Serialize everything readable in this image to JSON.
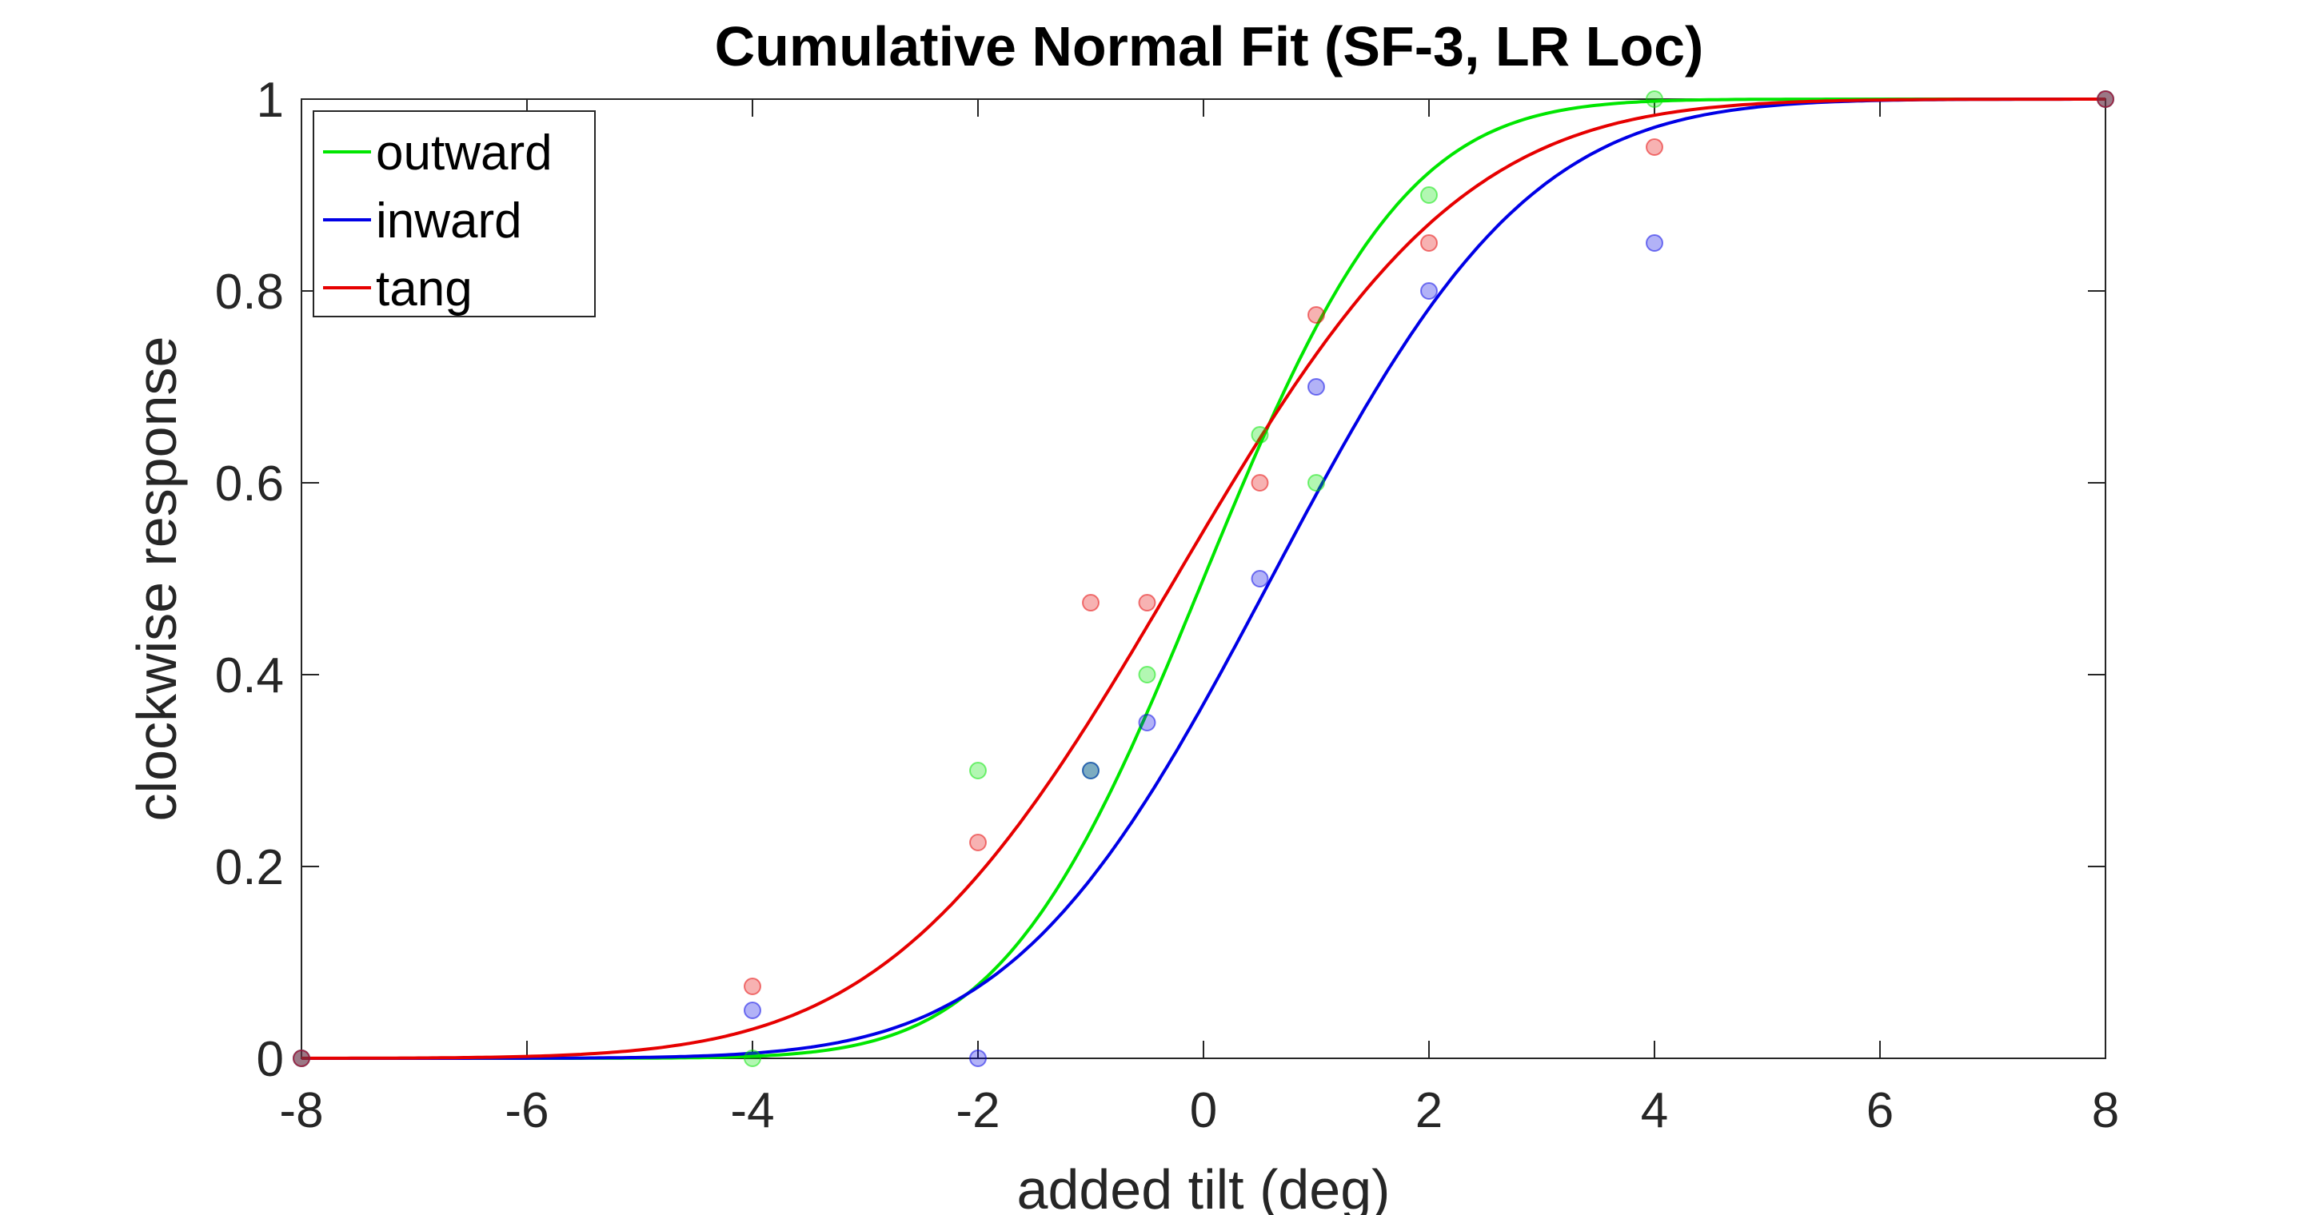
{
  "chart_data": {
    "type": "scatter",
    "title": "Cumulative Normal Fit (SF-3, LR Loc)",
    "xlabel": "added tilt (deg)",
    "ylabel": "clockwise response",
    "xlim": [
      -8,
      8
    ],
    "ylim": [
      0,
      1
    ],
    "xticks": [
      -8,
      -6,
      -4,
      -2,
      0,
      2,
      4,
      6,
      8
    ],
    "xtick_labels": [
      "-8",
      "-6",
      "-4",
      "-2",
      "0",
      "2",
      "4",
      "6",
      "8"
    ],
    "yticks": [
      0,
      0.2,
      0.4,
      0.6,
      0.8,
      1
    ],
    "ytick_labels": [
      "0",
      "0.2",
      "0.4",
      "0.6",
      "0.8",
      "1"
    ],
    "grid": false,
    "legend_position": "top-left",
    "series": [
      {
        "name": "outward",
        "color": "#00e600",
        "points": [
          [
            -8,
            0
          ],
          [
            -4,
            0
          ],
          [
            -2,
            0.3
          ],
          [
            -1,
            0.3
          ],
          [
            -0.5,
            0.4
          ],
          [
            0.5,
            0.65
          ],
          [
            1,
            0.6
          ],
          [
            2,
            0.9
          ],
          [
            4,
            1.0
          ],
          [
            8,
            1.0
          ]
        ],
        "fit": {
          "model": "cumulative normal",
          "mu": 0.0,
          "sigma": 1.4
        }
      },
      {
        "name": "inward",
        "color": "#0000e6",
        "points": [
          [
            -8,
            0
          ],
          [
            -4,
            0.05
          ],
          [
            -2,
            0
          ],
          [
            -1,
            0.3
          ],
          [
            -0.5,
            0.35
          ],
          [
            0.5,
            0.5
          ],
          [
            1,
            0.7
          ],
          [
            2,
            0.8
          ],
          [
            4,
            0.85
          ],
          [
            8,
            1.0
          ]
        ],
        "fit": {
          "model": "cumulative normal",
          "mu": 0.6,
          "sigma": 1.8
        }
      },
      {
        "name": "tang",
        "color": "#e60000",
        "points": [
          [
            -8,
            0
          ],
          [
            -4,
            0.075
          ],
          [
            -2,
            0.225
          ],
          [
            -1,
            0.475
          ],
          [
            -0.5,
            0.475
          ],
          [
            0.5,
            0.6
          ],
          [
            1,
            0.775
          ],
          [
            2,
            0.85
          ],
          [
            4,
            0.95
          ],
          [
            8,
            1.0
          ]
        ],
        "fit": {
          "model": "cumulative normal",
          "mu": -0.25,
          "sigma": 2.0
        }
      }
    ]
  }
}
